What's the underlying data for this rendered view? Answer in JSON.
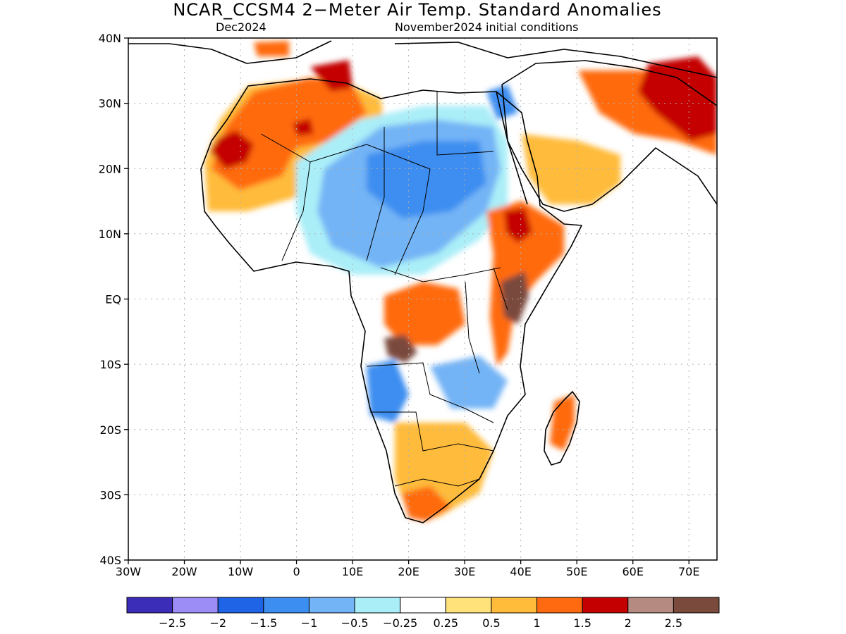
{
  "title": "NCAR_CCSM4 2−Meter Air Temp. Standard Anomalies",
  "subtitle_left": "Dec2024",
  "subtitle_right": "November2024 initial conditions",
  "map": {
    "lat_range": [
      -40,
      40
    ],
    "lon_range": [
      -30,
      75
    ],
    "grid": true,
    "lat_ticks": [
      {
        "value": 40,
        "label": "40N"
      },
      {
        "value": 30,
        "label": "30N"
      },
      {
        "value": 20,
        "label": "20N"
      },
      {
        "value": 10,
        "label": "10N"
      },
      {
        "value": 0,
        "label": "EQ"
      },
      {
        "value": -10,
        "label": "10S"
      },
      {
        "value": -20,
        "label": "20S"
      },
      {
        "value": -30,
        "label": "30S"
      },
      {
        "value": -40,
        "label": "40S"
      }
    ],
    "lon_ticks": [
      {
        "value": -30,
        "label": "30W"
      },
      {
        "value": -20,
        "label": "20W"
      },
      {
        "value": -10,
        "label": "10W"
      },
      {
        "value": 0,
        "label": "0"
      },
      {
        "value": 10,
        "label": "10E"
      },
      {
        "value": 20,
        "label": "20E"
      },
      {
        "value": 30,
        "label": "30E"
      },
      {
        "value": 40,
        "label": "40E"
      },
      {
        "value": 50,
        "label": "50E"
      },
      {
        "value": 60,
        "label": "60E"
      },
      {
        "value": 70,
        "label": "70E"
      }
    ]
  },
  "colorbar": {
    "colors": [
      "#3c2db8",
      "#9c8cf5",
      "#1f64e6",
      "#3c8ef0",
      "#73b4f6",
      "#aaeef8",
      "#ffffff",
      "#ffe27a",
      "#ffbb3a",
      "#ff6a10",
      "#c40000",
      "#b58a80",
      "#7a4a3c"
    ],
    "labels": [
      "−2.5",
      "−2",
      "−1.5",
      "−1",
      "−0.5",
      "−0.25",
      "0.25",
      "0.5",
      "1",
      "1.5",
      "2",
      "2.5"
    ]
  }
}
